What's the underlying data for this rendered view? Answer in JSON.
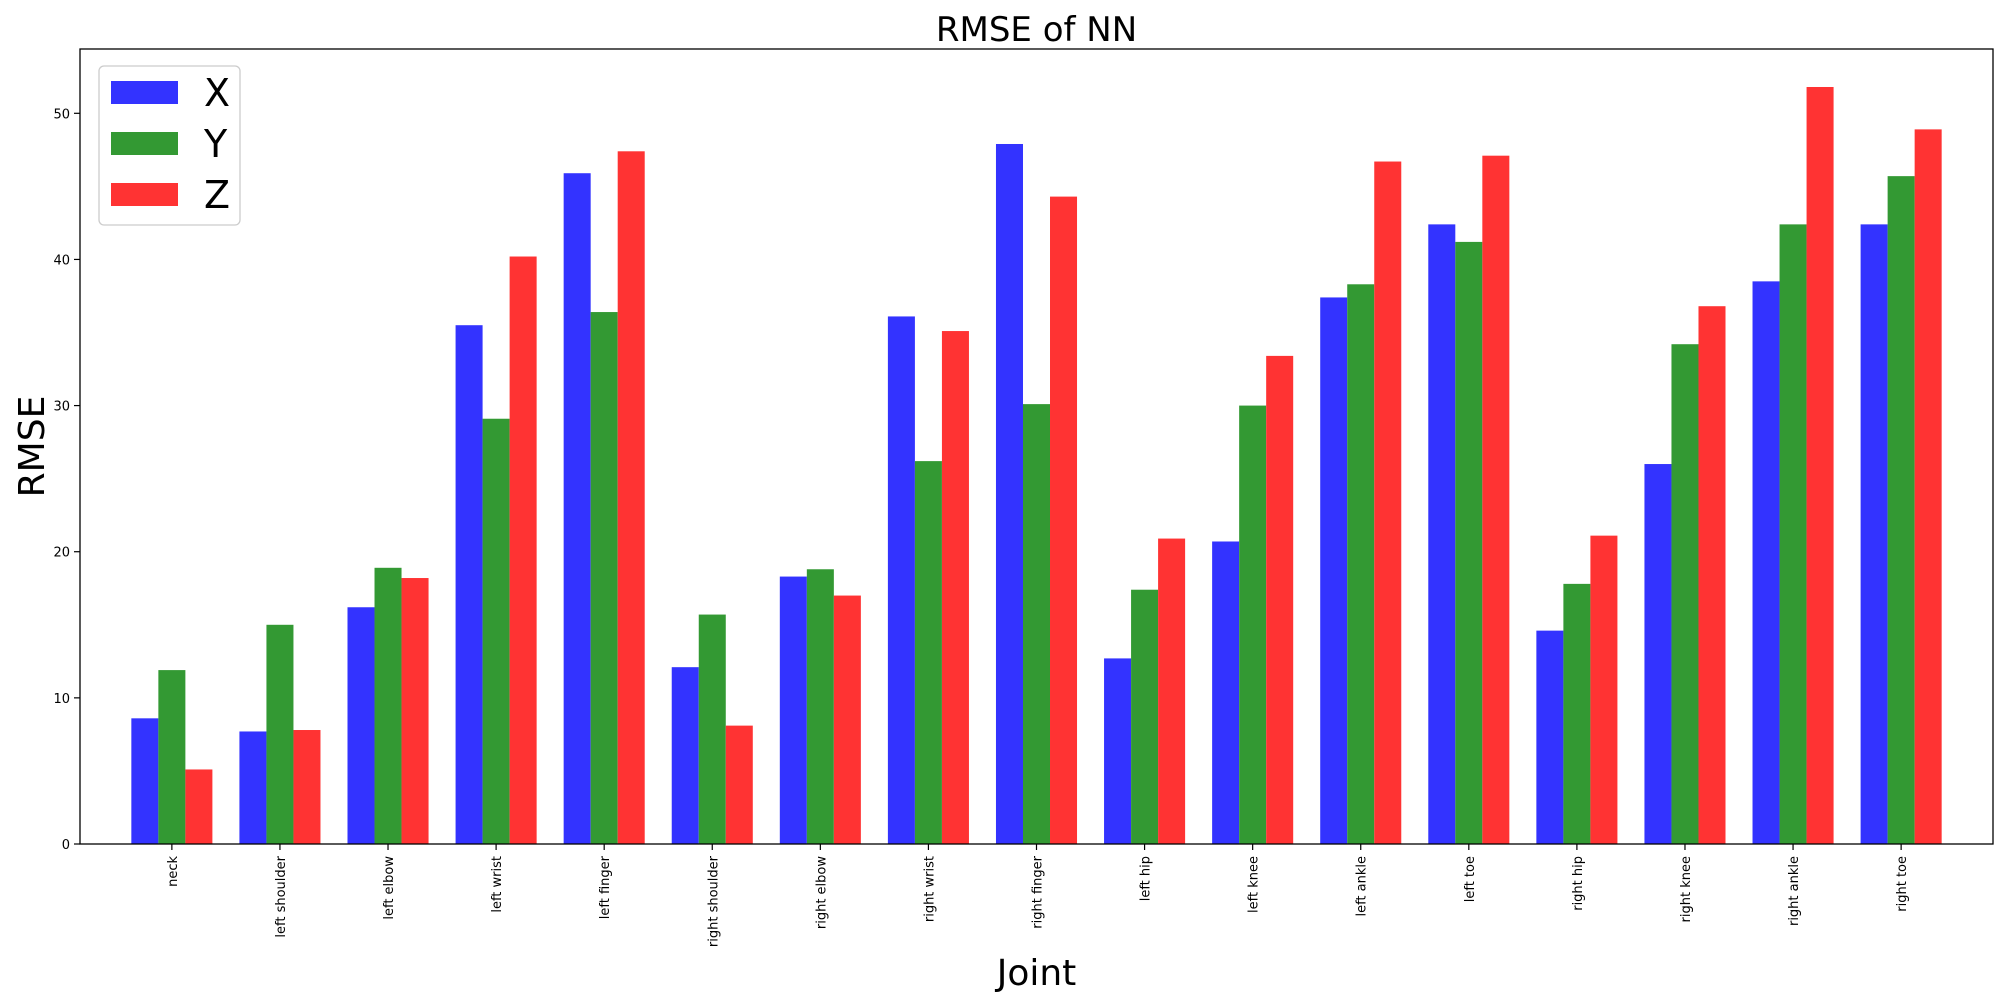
{
  "chart_data": {
    "type": "bar",
    "title": "RMSE of NN",
    "xlabel": "Joint",
    "ylabel": "RMSE",
    "ylim": [
      0,
      54.4
    ],
    "yticks": [
      0,
      10,
      20,
      30,
      40,
      50
    ],
    "grid": false,
    "legend_position": "top-left",
    "categories": [
      "neck",
      "left shoulder",
      "left elbow",
      "left wrist",
      "left finger",
      "right shoulder",
      "right elbow",
      "right wrist",
      "right finger",
      "left hip",
      "left knee",
      "left ankle",
      "left toe",
      "right hip",
      "right knee",
      "right ankle",
      "right toe"
    ],
    "series": [
      {
        "name": "X",
        "color": "#3333ff",
        "values": [
          8.6,
          7.7,
          16.2,
          35.5,
          45.9,
          12.1,
          18.3,
          36.1,
          47.9,
          12.7,
          20.7,
          37.4,
          42.4,
          14.6,
          26.0,
          38.5,
          42.4
        ]
      },
      {
        "name": "Y",
        "color": "#339933",
        "values": [
          11.9,
          15.0,
          18.9,
          29.1,
          36.4,
          15.7,
          18.8,
          26.2,
          30.1,
          17.4,
          30.0,
          38.3,
          41.2,
          17.8,
          34.2,
          42.4,
          45.7
        ]
      },
      {
        "name": "Z",
        "color": "#ff3333",
        "values": [
          5.1,
          7.8,
          18.2,
          40.2,
          47.4,
          8.1,
          17.0,
          35.1,
          44.3,
          20.9,
          33.4,
          46.7,
          47.1,
          21.1,
          36.8,
          51.8,
          48.9
        ]
      }
    ]
  }
}
